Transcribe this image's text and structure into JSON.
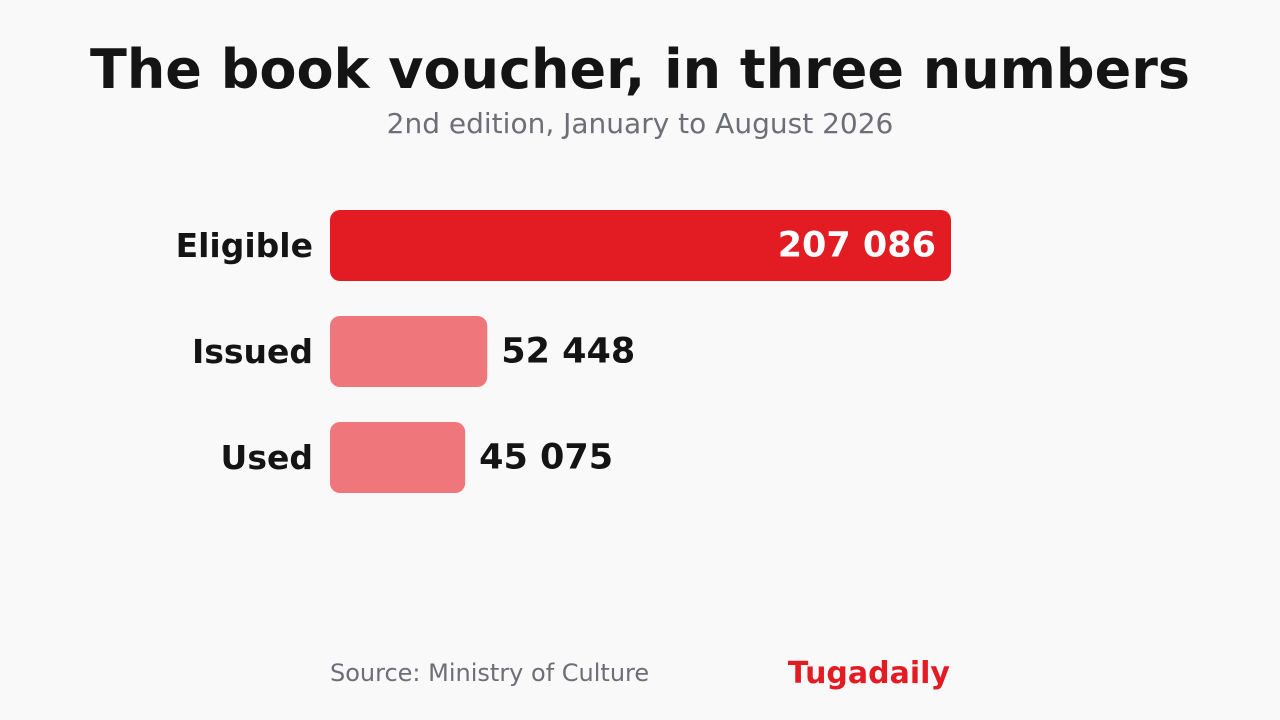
{
  "chart_data": {
    "type": "bar",
    "orientation": "horizontal",
    "title": "The book voucher, in three numbers",
    "subtitle": "2nd edition, January to August 2026",
    "categories": [
      "Eligible",
      "Issued",
      "Used"
    ],
    "values": [
      207086,
      52448,
      45075
    ],
    "value_labels": [
      "207 086",
      "52 448",
      "45 075"
    ],
    "xlim": [
      0,
      207086
    ],
    "grid": false,
    "legend": "none"
  },
  "footer": {
    "source": "Source: Ministry of Culture",
    "brand": "Tugadaily"
  },
  "colors": {
    "primary_bar": "#e31b23",
    "secondary_bar": "#ef777b",
    "inside_label": "#ffffff",
    "outside_label": "#141414"
  }
}
